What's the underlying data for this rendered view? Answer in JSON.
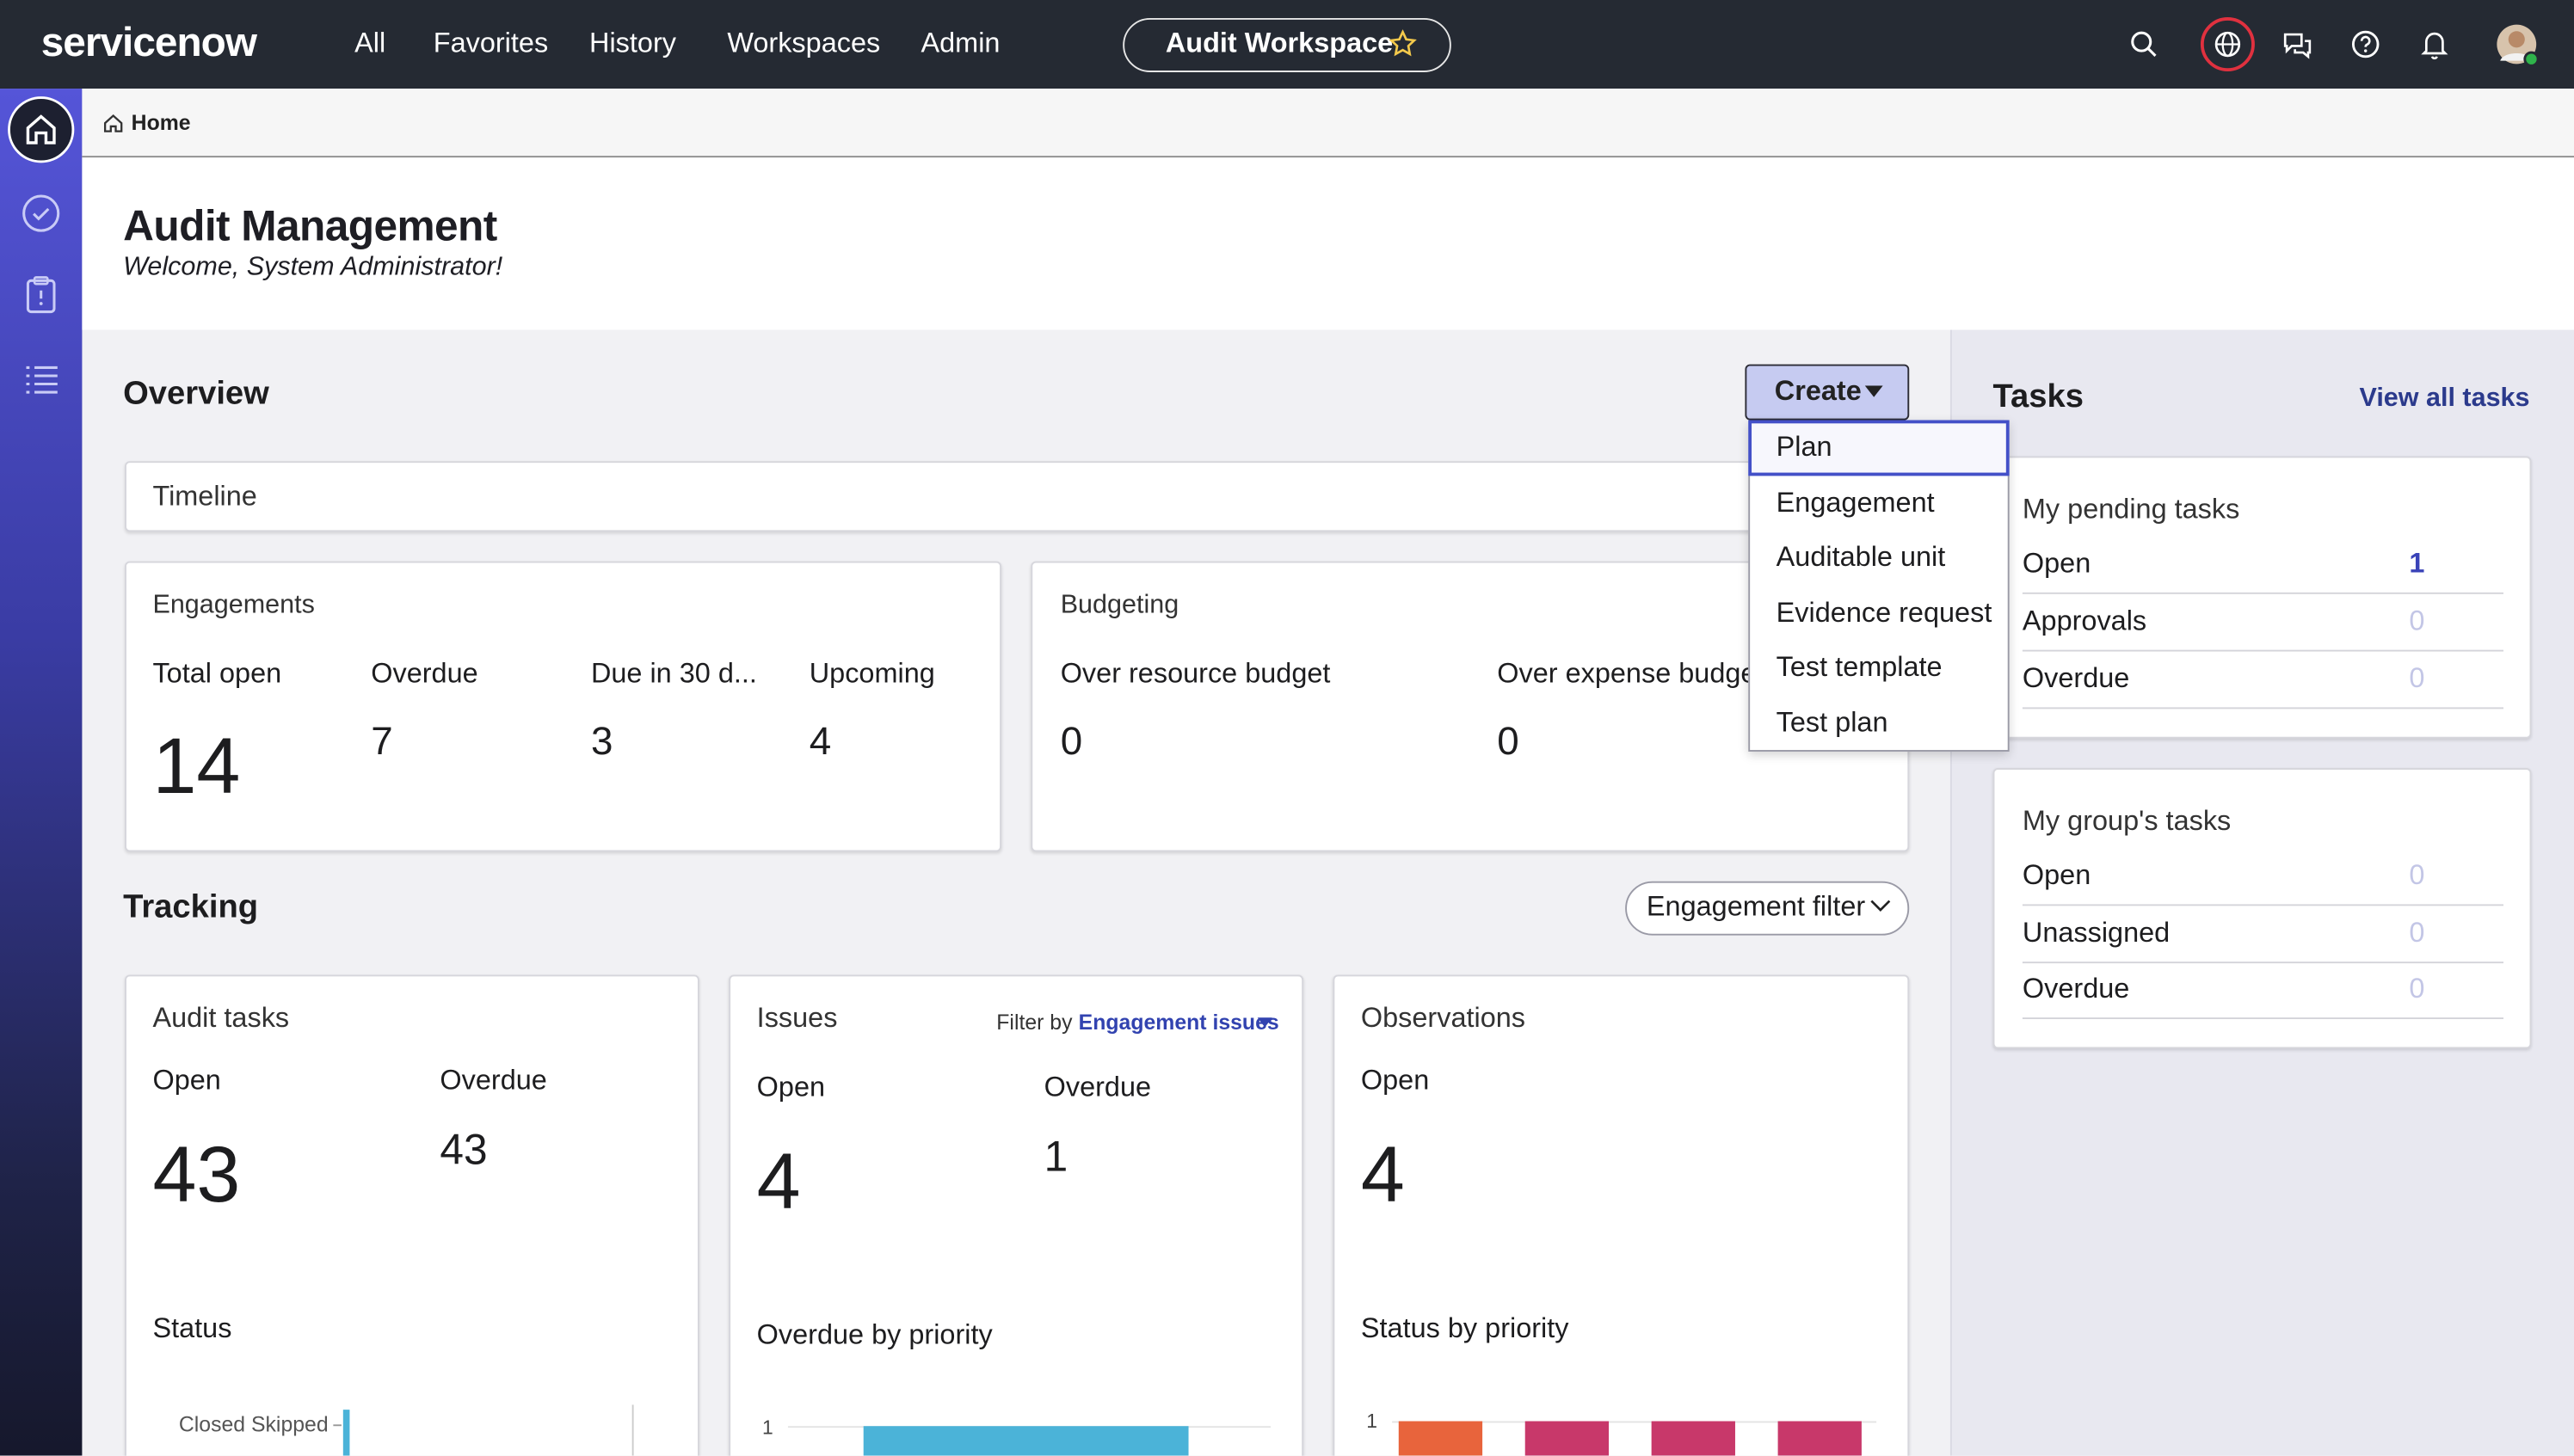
{
  "nav": {
    "brand": "servicenow",
    "menu": [
      "All",
      "Favorites",
      "History",
      "Workspaces",
      "Admin"
    ],
    "workspace": "Audit Workspace"
  },
  "breadcrumb": "Home",
  "header": {
    "title": "Audit Management",
    "subtitle": "Welcome, System Administrator!"
  },
  "overview": {
    "title": "Overview",
    "create": "Create",
    "create_menu": [
      "Plan",
      "Engagement",
      "Auditable unit",
      "Evidence request",
      "Test template",
      "Test plan"
    ],
    "timeline": "Timeline",
    "engagements": {
      "title": "Engagements",
      "metrics": [
        {
          "label": "Total open",
          "value": 14
        },
        {
          "label": "Overdue",
          "value": 7
        },
        {
          "label": "Due in 30 d...",
          "value": 3
        },
        {
          "label": "Upcoming",
          "value": 4
        }
      ]
    },
    "budgeting": {
      "title": "Budgeting",
      "metrics": [
        {
          "label": "Over resource budget",
          "value": 0
        },
        {
          "label": "Over expense budget",
          "value": 0
        }
      ]
    }
  },
  "tracking": {
    "title": "Tracking",
    "filter": "Engagement filter",
    "audit_tasks": {
      "title": "Audit tasks",
      "metrics": [
        {
          "label": "Open",
          "value": 43
        },
        {
          "label": "Overdue",
          "value": 43
        }
      ],
      "chart_title": "Status",
      "chart_label": "Closed Skipped"
    },
    "issues": {
      "title": "Issues",
      "filter_label": "Filter by",
      "filter_value": "Engagement issues",
      "metrics": [
        {
          "label": "Open",
          "value": 4
        },
        {
          "label": "Overdue",
          "value": 1
        }
      ],
      "chart_title": "Overdue by priority",
      "chart_tick": 1
    },
    "observations": {
      "title": "Observations",
      "metrics": [
        {
          "label": "Open",
          "value": 4
        }
      ],
      "chart_title": "Status by priority",
      "chart_tick": 1
    }
  },
  "tasks": {
    "title": "Tasks",
    "view_all": "View all tasks",
    "pending": {
      "title": "My pending tasks",
      "rows": [
        {
          "label": "Open",
          "value": 1
        },
        {
          "label": "Approvals",
          "value": 0
        },
        {
          "label": "Overdue",
          "value": 0
        }
      ]
    },
    "group": {
      "title": "My group's tasks",
      "rows": [
        {
          "label": "Open",
          "value": 0
        },
        {
          "label": "Unassigned",
          "value": 0
        },
        {
          "label": "Overdue",
          "value": 0
        }
      ]
    }
  }
}
